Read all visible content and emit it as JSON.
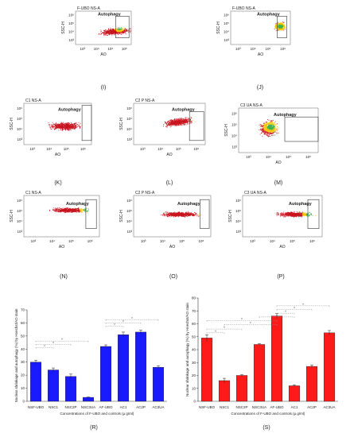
{
  "flow_panels": [
    {
      "label": "(I)",
      "title": "F-UBO NS-A",
      "gate_label": "Autophagy",
      "xlabel": "AO",
      "ylabel": "SSC-H",
      "x_ticks": [
        "10³",
        "10⁴",
        "10⁵",
        "10⁶"
      ],
      "y_ticks": [
        "10⁶",
        "10⁵",
        "10⁴",
        "10³"
      ]
    },
    {
      "label": "(J)",
      "title": "F-UBO NS-A",
      "gate_label": "Autophagy",
      "xlabel": "AO",
      "ylabel": "SSC-H",
      "x_ticks": [
        "10³",
        "10⁴",
        "10⁵",
        "10⁶"
      ],
      "y_ticks": [
        "10⁶",
        "10⁵",
        "10⁴",
        "10³"
      ]
    },
    {
      "label": "(K)",
      "title": "C1 NS-A",
      "gate_label": "Autophagy",
      "xlabel": "AO",
      "ylabel": "SSC-H",
      "x_ticks": [
        "10³",
        "10⁴",
        "10⁵",
        "10⁶"
      ],
      "y_ticks": [
        "10⁶",
        "10⁵",
        "10⁴",
        "10³"
      ]
    },
    {
      "label": "(L)",
      "title": "C2 P NS-A",
      "gate_label": "Autophagy",
      "xlabel": "AO",
      "ylabel": "SSC-H",
      "x_ticks": [
        "10³",
        "10⁴",
        "10⁵",
        "10⁶"
      ],
      "y_ticks": [
        "10⁶",
        "10⁵",
        "10⁴",
        "10³"
      ]
    },
    {
      "label": "(M)",
      "title": "C3 UA NS-A",
      "gate_label": "Autophagy",
      "xlabel": "AO",
      "ylabel": "SSC-H",
      "x_ticks": [
        "10³",
        "10⁴",
        "10⁵",
        "10⁶"
      ],
      "y_ticks": [
        "10⁶",
        "10⁵",
        "10⁴",
        "10³"
      ]
    },
    {
      "label": "(N)",
      "title": "C1 NS-A",
      "gate_label": "Autophagy",
      "xlabel": "AO",
      "ylabel": "SSC-H",
      "x_ticks": [
        "10³",
        "10⁴",
        "10⁵",
        "10⁶"
      ],
      "y_ticks": [
        "10⁶",
        "10⁵",
        "10⁴",
        "10³"
      ]
    },
    {
      "label": "(O)",
      "title": "C2 P NS-A",
      "gate_label": "Autophagy",
      "xlabel": "AO",
      "ylabel": "SSC-H",
      "x_ticks": [
        "10³",
        "10⁴",
        "10⁵",
        "10⁶"
      ],
      "y_ticks": [
        "10⁶",
        "10⁵",
        "10⁴",
        "10³"
      ]
    },
    {
      "label": "(P)",
      "title": "C3 UA NS-A",
      "gate_label": "Autophagy",
      "xlabel": "AO",
      "ylabel": "SSC-H",
      "x_ticks": [
        "10³",
        "10⁴",
        "10⁵",
        "10⁶"
      ],
      "y_ticks": [
        "10⁶",
        "10⁵",
        "10⁴",
        "10³"
      ]
    }
  ],
  "colors": {
    "blue_bars": "#1a1aff",
    "red_bars": "#ff1a1a",
    "dot_red": "#c8141e",
    "dot_yellow": "#f5c400",
    "dot_green": "#3ab54a"
  },
  "chart_data": [
    {
      "type": "bar",
      "panel_label": "(R)",
      "categories": [
        "NSF-UBO",
        "NSC1",
        "NSC2P",
        "NSC3UA",
        "AF-UBO",
        "AC1",
        "AC2P",
        "AC3UA"
      ],
      "values": [
        30,
        24,
        19,
        3,
        42,
        51,
        53,
        26
      ],
      "errors": [
        1.5,
        1.5,
        1.8,
        0.3,
        1.2,
        2.0,
        1.5,
        1.2
      ],
      "xlabel": "Concentrations of F-UBO and controls (µ g/ml)",
      "ylabel": "Nuclear shrinkage and autophagy (%) by Hoechst/AO stain",
      "ylim": [
        0,
        70
      ],
      "y_ticks": [
        0,
        10,
        20,
        30,
        40,
        50,
        60,
        70
      ],
      "significance_marks": [
        "*",
        "*",
        "*",
        "*",
        "*",
        "*"
      ]
    },
    {
      "type": "bar",
      "panel_label": "(S)",
      "categories": [
        "NSF-UBO",
        "NSC1",
        "NSC2P",
        "NSC3UA",
        "AF-UBO",
        "AC1",
        "AC2P",
        "AC3UA"
      ],
      "values": [
        49,
        16,
        20,
        44,
        66,
        12,
        27,
        53
      ],
      "errors": [
        2.5,
        1.8,
        0.6,
        0.6,
        2.0,
        0.8,
        1.0,
        1.8
      ],
      "xlabel": "Concentrations of F-UBO and controls (µ g/ml)",
      "ylabel": "Nuclear shrinkage and autophagy (%) by Hoechst/AO stain",
      "ylim": [
        0,
        80
      ],
      "y_ticks": [
        0,
        10,
        20,
        30,
        40,
        50,
        60,
        70,
        80
      ],
      "significance_marks": [
        "*",
        "*",
        "*",
        "*",
        "*",
        "*",
        "*",
        "*"
      ]
    }
  ]
}
